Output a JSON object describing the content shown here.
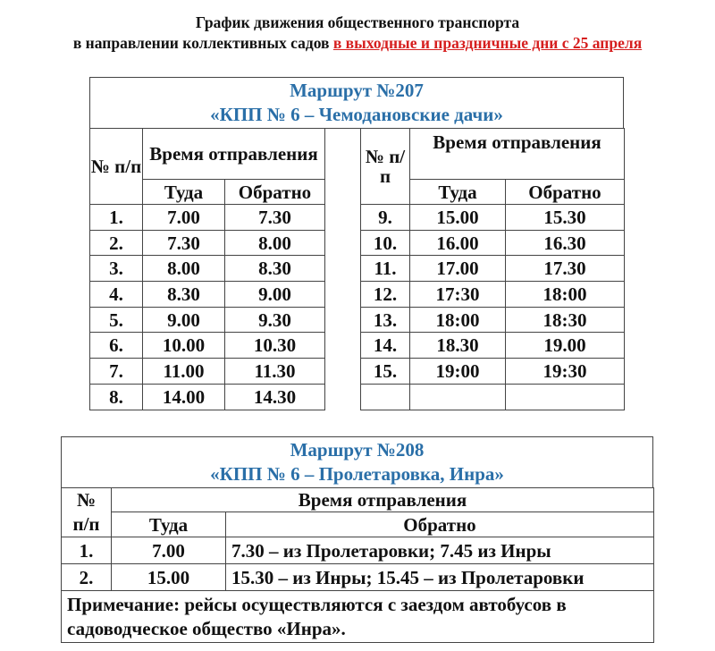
{
  "heading": {
    "line1": "График движения общественного транспорта",
    "line2_prefix": "в направлении коллективных садов",
    "line2_highlight": "в выходные и праздничные дни с 25 апреля",
    "highlight_color": "#d61f1f"
  },
  "route207": {
    "title": "Маршрут №207",
    "subtitle": "«КПП № 6 – Чемодановские дачи»",
    "title_color": "#2a6fa8",
    "headers": {
      "num": "№ п/п",
      "time_left": "Время отправления",
      "time_right": "Время отправления",
      "there": "Туда",
      "back": "Обратно"
    },
    "rows_left": [
      [
        "1.",
        "7.00",
        "7.30"
      ],
      [
        "2.",
        "7.30",
        "8.00"
      ],
      [
        "3.",
        "8.00",
        "8.30"
      ],
      [
        "4.",
        "8.30",
        "9.00"
      ],
      [
        "5.",
        "9.00",
        "9.30"
      ],
      [
        "6.",
        "10.00",
        "10.30"
      ],
      [
        "7.",
        "11.00",
        "11.30"
      ],
      [
        "8.",
        "14.00",
        "14.30"
      ]
    ],
    "rows_right": [
      [
        "9.",
        "15.00",
        "15.30"
      ],
      [
        "10.",
        "16.00",
        "16.30"
      ],
      [
        "11.",
        "17.00",
        "17.30"
      ],
      [
        "12.",
        "17:30",
        "18:00"
      ],
      [
        "13.",
        "18:00",
        "18:30"
      ],
      [
        "14.",
        "18.30",
        "19.00"
      ],
      [
        "15.",
        "19:00",
        "19:30"
      ],
      [
        "",
        "",
        ""
      ]
    ]
  },
  "route208": {
    "title": "Маршрут №208",
    "subtitle": "«КПП № 6 – Пролетаровка, Инра»",
    "headers": {
      "num_top": "№",
      "num_bottom": "п/п",
      "time": "Время отправления",
      "there": "Туда",
      "back": "Обратно"
    },
    "rows": [
      [
        "1.",
        "7.00",
        "7.30 – из Пролетаровки; 7.45 из Инры"
      ],
      [
        "2.",
        "15.00",
        "15.30 – из Инры; 15.45 – из Пролетаровки"
      ]
    ],
    "note": "Примечание: рейсы осуществляются с заездом автобусов в садоводческое общество «Инра»."
  }
}
